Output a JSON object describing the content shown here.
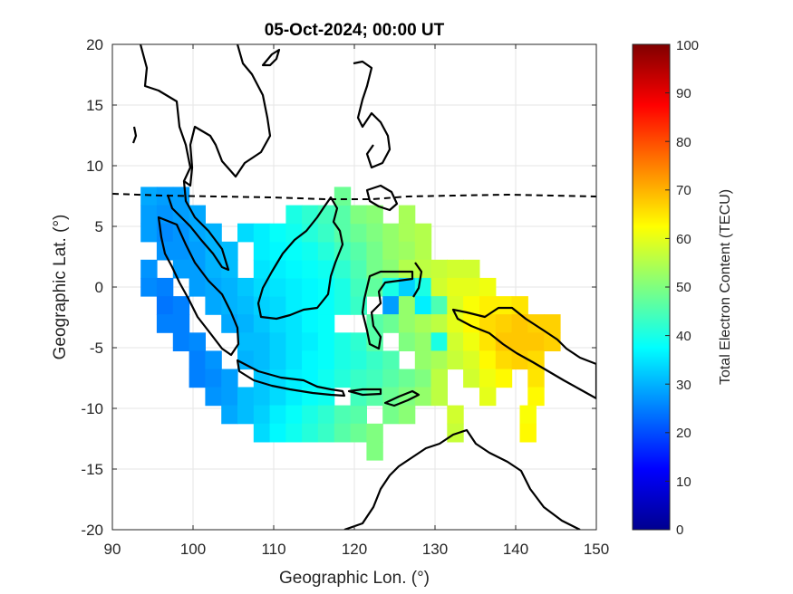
{
  "chart_data": {
    "type": "heatmap",
    "title": "05-Oct-2024; 00:00 UT",
    "xlabel": "Geographic Lon. (°)",
    "ylabel": "Geographic Lat. (°)",
    "xlim": [
      90,
      150
    ],
    "ylim": [
      -20,
      20
    ],
    "xticks": [
      "90",
      "100",
      "110",
      "120",
      "130",
      "140",
      "150"
    ],
    "yticks": [
      "20",
      "15",
      "10",
      "5",
      "0",
      "-5",
      "-10",
      "-15",
      "-20"
    ],
    "grid": true,
    "colorbar": {
      "label": "Total Electron Content (TECU)",
      "range": [
        0,
        100
      ],
      "ticks": [
        "0",
        "10",
        "20",
        "30",
        "40",
        "50",
        "60",
        "70",
        "80",
        "90",
        "100"
      ],
      "colormap": "jet"
    },
    "value_description": "Gridded TEC cells: ~28 TECU near Sumatra/Java (west), ~38-45 TECU over Borneo, ~50-55 TECU around Sulawesi/Lesser Sunda, ~60-68 TECU over New Guinea (east)",
    "tec_cells": [
      [
        94.5,
        7.5,
        29
      ],
      [
        96.5,
        7.5,
        28
      ],
      [
        98.5,
        7.5,
        28
      ],
      [
        94.5,
        6,
        28
      ],
      [
        96.5,
        6,
        27
      ],
      [
        98.5,
        6,
        28
      ],
      [
        100.5,
        6,
        29
      ],
      [
        94.5,
        4.5,
        28
      ],
      [
        96.5,
        4.5,
        26
      ],
      [
        98.5,
        4.5,
        27
      ],
      [
        100.5,
        4.5,
        29
      ],
      [
        102.5,
        4.5,
        30
      ],
      [
        96.5,
        3,
        27
      ],
      [
        98.5,
        3,
        27
      ],
      [
        100.5,
        3,
        28
      ],
      [
        102.5,
        3,
        30
      ],
      [
        104.5,
        3,
        31
      ],
      [
        98.5,
        1.5,
        28
      ],
      [
        100.5,
        1.5,
        28
      ],
      [
        102.5,
        1.5,
        30
      ],
      [
        104.5,
        1.5,
        31
      ],
      [
        100.5,
        0,
        28
      ],
      [
        102.5,
        0,
        29
      ],
      [
        104.5,
        0,
        30
      ],
      [
        106.5,
        0,
        32
      ],
      [
        102.5,
        -1.5,
        29
      ],
      [
        104.5,
        -1.5,
        30
      ],
      [
        106.5,
        -1.5,
        31
      ],
      [
        104.5,
        -3,
        29
      ],
      [
        106.5,
        -3,
        30
      ],
      [
        94.5,
        1.5,
        27
      ],
      [
        94.5,
        0,
        26
      ],
      [
        96.5,
        0,
        25
      ],
      [
        96.5,
        -1.5,
        24
      ],
      [
        96.5,
        -3,
        25
      ],
      [
        98.5,
        -1.5,
        25
      ],
      [
        98.5,
        -3,
        25
      ],
      [
        98.5,
        -4.5,
        25
      ],
      [
        100.5,
        -4.5,
        26
      ],
      [
        100.5,
        -6,
        25
      ],
      [
        100.5,
        -7.5,
        25
      ],
      [
        102.5,
        -6,
        27
      ],
      [
        102.5,
        -7.5,
        26
      ],
      [
        102.5,
        -9,
        27
      ],
      [
        104.5,
        -7.5,
        28
      ],
      [
        104.5,
        -9,
        28
      ],
      [
        104.5,
        -10.5,
        29
      ],
      [
        106.5,
        -4.5,
        31
      ],
      [
        106.5,
        -6,
        30
      ],
      [
        106.5,
        -9,
        31
      ],
      [
        106.5,
        -10.5,
        31
      ],
      [
        108.5,
        -9,
        32
      ],
      [
        108.5,
        -10.5,
        33
      ],
      [
        108.5,
        -12,
        34
      ],
      [
        110.5,
        -9,
        34
      ],
      [
        110.5,
        -10.5,
        36
      ],
      [
        110.5,
        -12,
        37
      ],
      [
        112.5,
        -9,
        36
      ],
      [
        112.5,
        -10.5,
        38
      ],
      [
        112.5,
        -12,
        39
      ],
      [
        114.5,
        -9,
        38
      ],
      [
        114.5,
        -10.5,
        40
      ],
      [
        114.5,
        -12,
        41
      ],
      [
        116.5,
        -9,
        39
      ],
      [
        116.5,
        -10.5,
        42
      ],
      [
        116.5,
        -12,
        43
      ],
      [
        118.5,
        -10.5,
        45
      ],
      [
        118.5,
        -12,
        46
      ],
      [
        120.5,
        -10.5,
        46
      ],
      [
        120.5,
        -12,
        48
      ],
      [
        122.5,
        -12,
        50
      ],
      [
        122.5,
        -13.5,
        50
      ],
      [
        108.5,
        -7.5,
        32
      ],
      [
        110.5,
        -7.5,
        34
      ],
      [
        112.5,
        -7.5,
        36
      ],
      [
        114.5,
        -7.5,
        37
      ],
      [
        116.5,
        -7.5,
        39
      ],
      [
        118.5,
        -7.5,
        41
      ],
      [
        120.5,
        -7.5,
        43
      ],
      [
        122.5,
        -7.5,
        44
      ],
      [
        124.5,
        -7.5,
        46
      ],
      [
        126.5,
        -7.5,
        48
      ],
      [
        128.5,
        -7.5,
        50
      ],
      [
        120.5,
        -9,
        44
      ],
      [
        122.5,
        -9,
        46
      ],
      [
        124.5,
        -9,
        48
      ],
      [
        126.5,
        -9,
        50
      ],
      [
        128.5,
        -9,
        52
      ],
      [
        124.5,
        -10.5,
        49
      ],
      [
        126.5,
        -10.5,
        51
      ],
      [
        108.5,
        -3,
        32
      ],
      [
        110.5,
        -3,
        34
      ],
      [
        112.5,
        -3,
        35
      ],
      [
        114.5,
        -3,
        37
      ],
      [
        116.5,
        -3,
        38
      ],
      [
        108.5,
        -4.5,
        31
      ],
      [
        110.5,
        -4.5,
        33
      ],
      [
        112.5,
        -4.5,
        35
      ],
      [
        114.5,
        -4.5,
        36
      ],
      [
        116.5,
        -4.5,
        38
      ],
      [
        118.5,
        -4.5,
        40
      ],
      [
        120.5,
        -4.5,
        42
      ],
      [
        108.5,
        -6,
        31
      ],
      [
        110.5,
        -6,
        33
      ],
      [
        112.5,
        -6,
        35
      ],
      [
        114.5,
        -6,
        37
      ],
      [
        116.5,
        -6,
        38
      ],
      [
        118.5,
        -6,
        40
      ],
      [
        120.5,
        -6,
        41
      ],
      [
        122.5,
        -6,
        43
      ],
      [
        124.5,
        -6,
        45
      ],
      [
        108.5,
        -1.5,
        33
      ],
      [
        110.5,
        -1.5,
        34
      ],
      [
        112.5,
        -1.5,
        36
      ],
      [
        114.5,
        -1.5,
        37
      ],
      [
        116.5,
        -1.5,
        38
      ],
      [
        118.5,
        -1.5,
        40
      ],
      [
        120.5,
        -1.5,
        43
      ],
      [
        108.5,
        0,
        34
      ],
      [
        110.5,
        0,
        35
      ],
      [
        112.5,
        0,
        36
      ],
      [
        114.5,
        0,
        37
      ],
      [
        116.5,
        0,
        38
      ],
      [
        118.5,
        0,
        40
      ],
      [
        120.5,
        0,
        44
      ],
      [
        122.5,
        0,
        47
      ],
      [
        108.5,
        1.5,
        35
      ],
      [
        110.5,
        1.5,
        36
      ],
      [
        112.5,
        1.5,
        37
      ],
      [
        114.5,
        1.5,
        38
      ],
      [
        116.5,
        1.5,
        39
      ],
      [
        118.5,
        1.5,
        42
      ],
      [
        120.5,
        1.5,
        45
      ],
      [
        108.5,
        3,
        36
      ],
      [
        110.5,
        3,
        37
      ],
      [
        112.5,
        3,
        38
      ],
      [
        114.5,
        3,
        39
      ],
      [
        116.5,
        3,
        41
      ],
      [
        118.5,
        3,
        44
      ],
      [
        120.5,
        3,
        46
      ],
      [
        106.5,
        4.5,
        34
      ],
      [
        108.5,
        4.5,
        36
      ],
      [
        110.5,
        4.5,
        38
      ],
      [
        112.5,
        4.5,
        39
      ],
      [
        114.5,
        4.5,
        41
      ],
      [
        116.5,
        4.5,
        43
      ],
      [
        118.5,
        4.5,
        46
      ],
      [
        120.5,
        4.5,
        48
      ],
      [
        112.5,
        6,
        40
      ],
      [
        114.5,
        6,
        42
      ],
      [
        116.5,
        6,
        44
      ],
      [
        118.5,
        6,
        46
      ],
      [
        118.5,
        7.5,
        48
      ],
      [
        120.5,
        6,
        50
      ],
      [
        122.5,
        6,
        51
      ],
      [
        122.5,
        4.5,
        50
      ],
      [
        122.5,
        3,
        49
      ],
      [
        122.5,
        1.5,
        49
      ],
      [
        124.5,
        4.5,
        52
      ],
      [
        124.5,
        3,
        52
      ],
      [
        124.5,
        1.5,
        51
      ],
      [
        124.5,
        0,
        40
      ],
      [
        124.5,
        -1.5,
        28
      ],
      [
        124.5,
        -3,
        48
      ],
      [
        122.5,
        -3,
        46
      ],
      [
        122.5,
        -4.5,
        46
      ],
      [
        126.5,
        6,
        54
      ],
      [
        126.5,
        4.5,
        54
      ],
      [
        126.5,
        3,
        53
      ],
      [
        126.5,
        1.5,
        55
      ],
      [
        126.5,
        0,
        33
      ],
      [
        126.5,
        -1.5,
        52
      ],
      [
        126.5,
        -3,
        52
      ],
      [
        126.5,
        -4.5,
        50
      ],
      [
        128.5,
        4.5,
        55
      ],
      [
        128.5,
        3,
        55
      ],
      [
        128.5,
        1.5,
        56
      ],
      [
        128.5,
        0,
        40
      ],
      [
        128.5,
        -1.5,
        36
      ],
      [
        128.5,
        -3,
        54
      ],
      [
        128.5,
        -4.5,
        52
      ],
      [
        128.5,
        -6,
        52
      ],
      [
        130.5,
        1.5,
        57
      ],
      [
        130.5,
        0,
        58
      ],
      [
        130.5,
        -1.5,
        45
      ],
      [
        130.5,
        -3,
        56
      ],
      [
        130.5,
        -4.5,
        40
      ],
      [
        130.5,
        -6,
        54
      ],
      [
        130.5,
        -7.5,
        56
      ],
      [
        130.5,
        -9,
        56
      ],
      [
        132.5,
        1.5,
        58
      ],
      [
        132.5,
        0,
        60
      ],
      [
        132.5,
        -1.5,
        59
      ],
      [
        132.5,
        -3,
        60
      ],
      [
        132.5,
        -4.5,
        58
      ],
      [
        132.5,
        -6,
        57
      ],
      [
        132.5,
        -10.5,
        58
      ],
      [
        132.5,
        -12,
        57
      ],
      [
        134.5,
        1.5,
        58
      ],
      [
        134.5,
        0,
        60
      ],
      [
        134.5,
        -1.5,
        62
      ],
      [
        134.5,
        -3,
        63
      ],
      [
        134.5,
        -4.5,
        61
      ],
      [
        134.5,
        -6,
        59
      ],
      [
        134.5,
        -7.5,
        58
      ],
      [
        136.5,
        0,
        61
      ],
      [
        136.5,
        -1.5,
        64
      ],
      [
        136.5,
        -3,
        66
      ],
      [
        136.5,
        -4.5,
        65
      ],
      [
        136.5,
        -6,
        63
      ],
      [
        136.5,
        -7.5,
        61
      ],
      [
        136.5,
        -9,
        60
      ],
      [
        138.5,
        -1.5,
        64
      ],
      [
        138.5,
        -3,
        67
      ],
      [
        138.5,
        -4.5,
        68
      ],
      [
        138.5,
        -6,
        66
      ],
      [
        138.5,
        -7.5,
        63
      ],
      [
        140.5,
        -1.5,
        65
      ],
      [
        140.5,
        -3,
        68
      ],
      [
        140.5,
        -4.5,
        68
      ],
      [
        140.5,
        -6,
        67
      ],
      [
        142.5,
        -3,
        67
      ],
      [
        142.5,
        -4.5,
        68
      ],
      [
        142.5,
        -6,
        66
      ],
      [
        142.5,
        -7.5,
        65
      ],
      [
        142.5,
        -9,
        63
      ],
      [
        141.5,
        -10.5,
        62
      ],
      [
        141.5,
        -12,
        63
      ],
      [
        144.5,
        -3,
        67
      ],
      [
        144.5,
        -4.5,
        67
      ]
    ]
  }
}
